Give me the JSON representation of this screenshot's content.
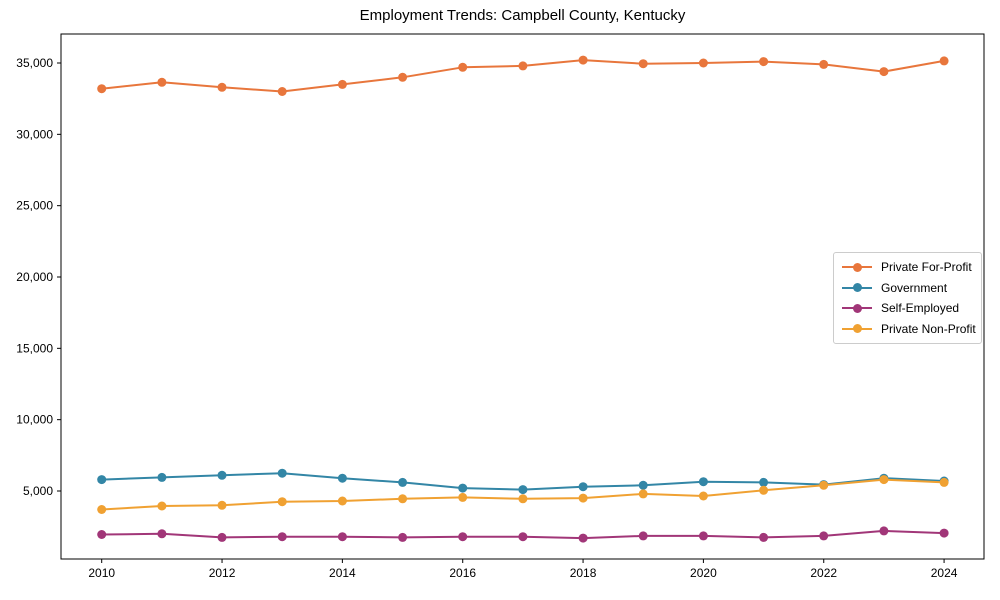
{
  "chart_data": {
    "type": "line",
    "title": "Employment Trends: Campbell County, Kentucky",
    "xlabel": "",
    "ylabel": "",
    "x": [
      2010,
      2011,
      2012,
      2013,
      2014,
      2015,
      2016,
      2017,
      2018,
      2019,
      2020,
      2021,
      2022,
      2023,
      2024
    ],
    "xtick_labels": [
      "2010",
      "2012",
      "2014",
      "2016",
      "2018",
      "2020",
      "2022",
      "2024"
    ],
    "xticks": [
      2010,
      2012,
      2014,
      2016,
      2018,
      2020,
      2022,
      2024
    ],
    "yticks": [
      5000,
      10000,
      15000,
      20000,
      25000,
      30000,
      35000
    ],
    "ytick_labels": [
      "5,000",
      "10,000",
      "15,000",
      "20,000",
      "25,000",
      "30,000",
      "35,000"
    ],
    "xlim": [
      2009.3,
      2024.7
    ],
    "ylim": [
      230,
      37030
    ],
    "grid": false,
    "legend_position": "center right",
    "marker": "circle",
    "series": [
      {
        "name": "Private For-Profit",
        "color": "#e8763c",
        "values": [
          33200,
          33650,
          33300,
          33000,
          33500,
          34000,
          34700,
          34800,
          35200,
          34950,
          35000,
          35100,
          34900,
          34400,
          35150
        ]
      },
      {
        "name": "Government",
        "color": "#3386a6",
        "values": [
          5800,
          5950,
          6100,
          6250,
          5900,
          5600,
          5200,
          5100,
          5300,
          5400,
          5650,
          5600,
          5450,
          5900,
          5700
        ]
      },
      {
        "name": "Self-Employed",
        "color": "#a13678",
        "values": [
          1950,
          2000,
          1750,
          1800,
          1800,
          1750,
          1800,
          1800,
          1700,
          1850,
          1850,
          1750,
          1850,
          2200,
          2050
        ]
      },
      {
        "name": "Private Non-Profit",
        "color": "#f0a132",
        "values": [
          3700,
          3950,
          4000,
          4250,
          4300,
          4450,
          4550,
          4450,
          4500,
          4800,
          4650,
          5050,
          5400,
          5800,
          5600
        ]
      }
    ]
  }
}
